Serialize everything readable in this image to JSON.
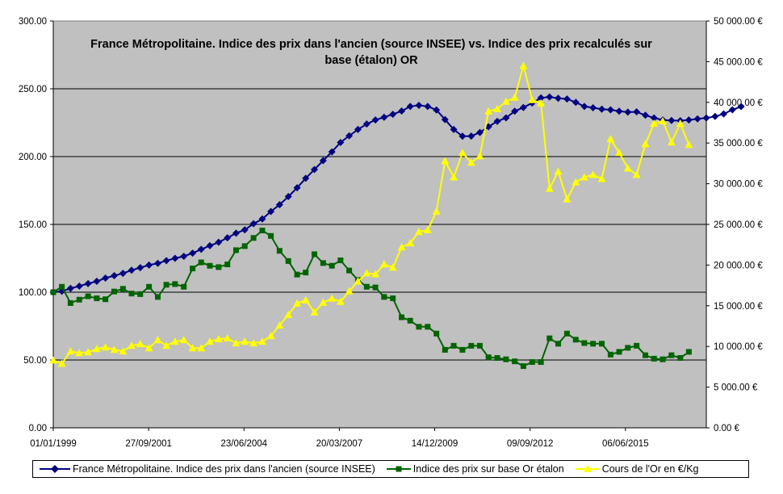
{
  "chart_data": {
    "type": "line",
    "title_lines": [
      "France Métropolitaine. Indice des prix dans l'ancien (source INSEE) vs. Indice des prix recalculés sur",
      "base (étalon) OR"
    ],
    "x_ticks": [
      "01/01/1999",
      "27/09/2001",
      "23/06/2004",
      "20/03/2007",
      "14/12/2009",
      "09/09/2012",
      "06/06/2015"
    ],
    "xlim": [
      "01/01/1999",
      "01/10/2017"
    ],
    "y_left": {
      "ylim": [
        0,
        300
      ],
      "ticks": [
        "0.00",
        "50.00",
        "100.00",
        "150.00",
        "200.00",
        "250.00",
        "300.00"
      ]
    },
    "y_right": {
      "ylim": [
        0,
        50000
      ],
      "ticks": [
        "0.00 €",
        "5 000.00 €",
        "10 000.00 €",
        "15 000.00 €",
        "20 000.00 €",
        "25 000.00 €",
        "30 000.00 €",
        "35 000.00 €",
        "40 000.00 €",
        "45 000.00 €",
        "50 000.00 €"
      ]
    },
    "grid": true,
    "legend_position": "bottom",
    "plot_background": "#c0c0c0",
    "series": [
      {
        "name": "France Métropolitaine. Indice des prix dans l'ancien (source INSEE)",
        "axis": "left",
        "color": "#000080",
        "marker": "diamond",
        "x_start": "1999-01",
        "step_months": 3,
        "values": [
          100,
          100.7,
          102.8,
          104.5,
          106.3,
          108,
          110.4,
          112.2,
          113.9,
          116.2,
          118.1,
          120,
          121.3,
          123.3,
          125,
          126.5,
          128.8,
          131.6,
          134.3,
          136.8,
          140.1,
          143.5,
          146,
          150.5,
          154,
          159.5,
          164.5,
          170.5,
          177,
          184,
          190.5,
          197,
          203.5,
          210.4,
          215.3,
          220,
          224,
          227,
          229,
          231.2,
          233.6,
          237,
          237.8,
          237,
          234.4,
          227.3,
          220,
          215,
          215.1,
          217.8,
          222,
          226,
          228.6,
          233.5,
          236.2,
          239.5,
          243.3,
          244,
          243,
          242.5,
          240,
          237,
          236,
          235,
          234.5,
          233.5,
          232.8,
          233,
          230.5,
          228.5,
          227,
          226.6,
          226.5,
          227,
          227.8,
          228.5,
          229.6,
          231.5,
          234.5,
          236.9
        ]
      },
      {
        "name": "Indice des prix sur base Or étalon",
        "axis": "left",
        "color": "#006400",
        "marker": "square",
        "x_start": "1999-01",
        "step_months": 3,
        "values": [
          100,
          104,
          92,
          94.5,
          97,
          95.5,
          94.8,
          100.5,
          102.5,
          99,
          98.6,
          104,
          96.5,
          105.5,
          106,
          104,
          117.5,
          122,
          119.5,
          118.5,
          120.5,
          131,
          134,
          140,
          145.5,
          141.5,
          130.5,
          123,
          113,
          114.5,
          128,
          121.5,
          119.5,
          123.5,
          116,
          109,
          104,
          103.5,
          96.5,
          95.5,
          81.5,
          79,
          74.5,
          74.5,
          69.5,
          57.5,
          60.5,
          57.5,
          60.5,
          60.5,
          52,
          51.5,
          50.5,
          49,
          45.5,
          48.5,
          48.5,
          66,
          62,
          69.5,
          65,
          62.5,
          62,
          62,
          54,
          56,
          59,
          60.5,
          53.5,
          51,
          50.5,
          53.5,
          51.5,
          56
        ]
      },
      {
        "name": "Cours de l'Or en €/Kg",
        "axis": "right",
        "color": "#ffff00",
        "marker": "triangle",
        "x_start": "1999-01",
        "step_months": 3,
        "values": [
          8300,
          7900,
          9400,
          9200,
          9300,
          9700,
          9900,
          9600,
          9400,
          10100,
          10300,
          9800,
          10800,
          10100,
          10600,
          10800,
          9800,
          9800,
          10600,
          10900,
          11000,
          10400,
          10600,
          10400,
          10600,
          11300,
          12600,
          13900,
          15300,
          15700,
          14200,
          15400,
          15900,
          15500,
          16800,
          18000,
          19000,
          18900,
          20100,
          19700,
          22200,
          22700,
          24100,
          24300,
          26600,
          32800,
          30800,
          33800,
          32600,
          33400,
          38900,
          39200,
          40100,
          40600,
          44500,
          40300,
          39900,
          29400,
          31500,
          28100,
          30200,
          30800,
          31100,
          30600,
          35500,
          33800,
          31900,
          31100,
          34900,
          37400,
          37700,
          35100,
          37400,
          34800
        ]
      }
    ]
  }
}
